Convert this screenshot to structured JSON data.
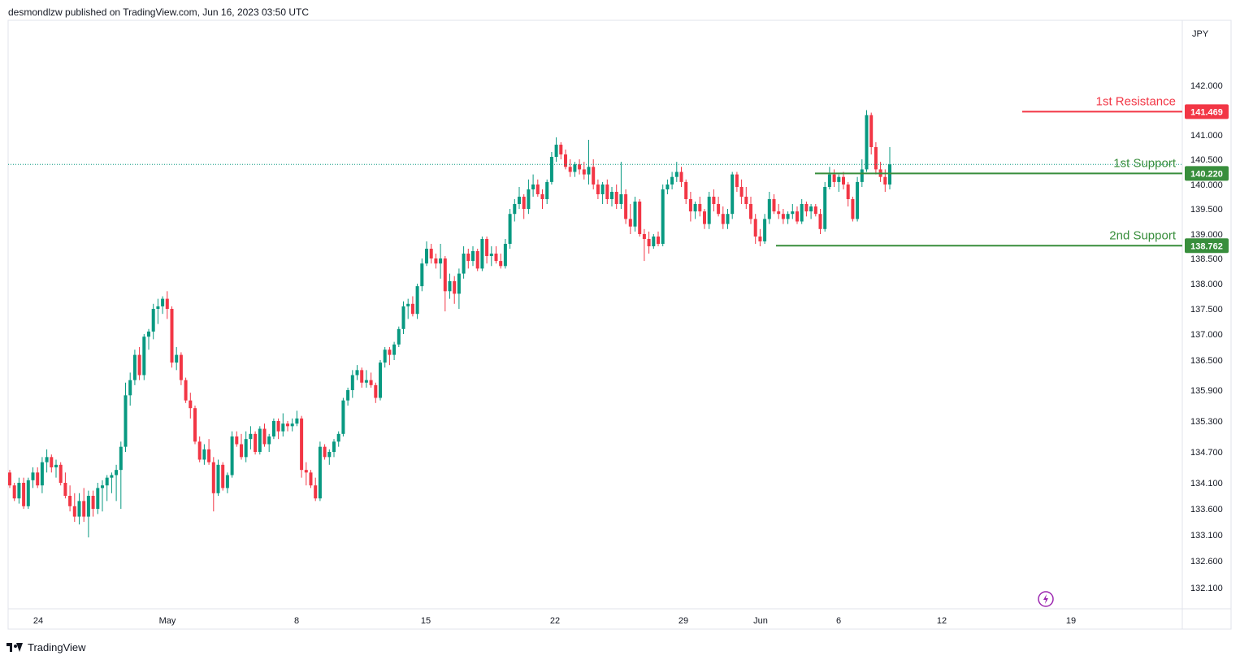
{
  "header": {
    "published_text": "desmondlzw published on TradingView.com, Jun 16, 2023 03:50 UTC"
  },
  "footer": {
    "brand": "TradingView"
  },
  "chart_data": {
    "type": "candlestick",
    "currency": "JPY",
    "y_ticks": [
      "142.000",
      "141.000",
      "140.500",
      "140.000",
      "139.500",
      "139.000",
      "138.500",
      "138.000",
      "137.500",
      "137.000",
      "136.500",
      "135.900",
      "135.300",
      "134.700",
      "134.100",
      "133.600",
      "133.100",
      "132.600",
      "132.100"
    ],
    "x_ticks": [
      "24",
      "May",
      "8",
      "15",
      "22",
      "29",
      "Jun",
      "6",
      "12",
      "19"
    ],
    "levels": [
      {
        "name": "1st Resistance",
        "value": 141.469,
        "label": "141.469",
        "color": "#f23645"
      },
      {
        "name": "1st Support",
        "value": 140.22,
        "label": "140.220",
        "color": "#388e3c"
      },
      {
        "name": "2nd Support",
        "value": 138.762,
        "label": "138.762",
        "color": "#388e3c"
      }
    ],
    "last_price": 140.4,
    "colors": {
      "up": "#089981",
      "down": "#f23645"
    },
    "candles": [
      [
        134.3,
        134.35,
        134.0,
        134.05
      ],
      [
        134.05,
        134.1,
        133.75,
        133.8
      ],
      [
        133.8,
        134.2,
        133.7,
        134.1
      ],
      [
        134.1,
        134.2,
        133.6,
        133.65
      ],
      [
        133.65,
        134.2,
        133.6,
        134.15
      ],
      [
        134.15,
        134.4,
        134.0,
        134.3
      ],
      [
        134.3,
        134.4,
        134.0,
        134.05
      ],
      [
        134.05,
        134.6,
        133.9,
        134.5
      ],
      [
        134.5,
        134.75,
        134.3,
        134.6
      ],
      [
        134.6,
        134.65,
        134.3,
        134.4
      ],
      [
        134.4,
        134.55,
        134.2,
        134.45
      ],
      [
        134.45,
        134.5,
        134.05,
        134.1
      ],
      [
        134.1,
        134.3,
        133.8,
        133.85
      ],
      [
        133.85,
        134.05,
        133.55,
        133.65
      ],
      [
        133.65,
        133.9,
        133.35,
        133.45
      ],
      [
        133.45,
        133.9,
        133.3,
        133.75
      ],
      [
        133.75,
        134.0,
        133.35,
        133.45
      ],
      [
        133.45,
        133.95,
        133.05,
        133.85
      ],
      [
        133.85,
        133.95,
        133.45,
        133.6
      ],
      [
        133.6,
        134.1,
        133.5,
        134.0
      ],
      [
        134.0,
        134.15,
        133.55,
        134.05
      ],
      [
        134.05,
        134.25,
        133.75,
        134.2
      ],
      [
        134.2,
        134.3,
        133.9,
        134.25
      ],
      [
        134.25,
        134.45,
        133.75,
        134.35
      ],
      [
        134.35,
        134.9,
        133.6,
        134.8
      ],
      [
        134.8,
        136.05,
        134.7,
        135.8
      ],
      [
        135.8,
        136.25,
        135.6,
        136.1
      ],
      [
        136.1,
        136.7,
        136.0,
        136.6
      ],
      [
        136.6,
        136.75,
        136.1,
        136.2
      ],
      [
        136.2,
        137.0,
        136.1,
        136.95
      ],
      [
        136.95,
        137.1,
        136.7,
        137.05
      ],
      [
        137.05,
        137.6,
        136.9,
        137.5
      ],
      [
        137.5,
        137.7,
        137.2,
        137.55
      ],
      [
        137.55,
        137.75,
        137.4,
        137.7
      ],
      [
        137.7,
        137.85,
        137.3,
        137.5
      ],
      [
        137.5,
        137.55,
        136.35,
        136.45
      ],
      [
        136.45,
        136.75,
        136.3,
        136.6
      ],
      [
        136.6,
        136.65,
        136.0,
        136.1
      ],
      [
        136.1,
        136.15,
        135.65,
        135.7
      ],
      [
        135.7,
        135.85,
        135.35,
        135.55
      ],
      [
        135.55,
        135.6,
        134.85,
        134.9
      ],
      [
        134.9,
        135.0,
        134.5,
        134.55
      ],
      [
        134.55,
        134.85,
        134.45,
        134.75
      ],
      [
        134.75,
        134.95,
        134.45,
        134.5
      ],
      [
        134.5,
        134.6,
        133.55,
        133.9
      ],
      [
        133.9,
        134.55,
        133.85,
        134.45
      ],
      [
        134.45,
        134.5,
        133.95,
        134.0
      ],
      [
        134.0,
        134.3,
        133.9,
        134.25
      ],
      [
        134.25,
        135.1,
        134.2,
        135.0
      ],
      [
        135.0,
        135.1,
        134.8,
        134.85
      ],
      [
        134.85,
        135.05,
        134.55,
        134.6
      ],
      [
        134.6,
        135.1,
        134.5,
        134.95
      ],
      [
        134.95,
        135.2,
        134.75,
        135.05
      ],
      [
        135.05,
        135.1,
        134.65,
        134.7
      ],
      [
        134.7,
        135.2,
        134.65,
        135.15
      ],
      [
        135.15,
        135.25,
        134.8,
        134.85
      ],
      [
        134.85,
        135.05,
        134.7,
        135.0
      ],
      [
        135.0,
        135.35,
        134.95,
        135.3
      ],
      [
        135.3,
        135.35,
        134.95,
        135.1
      ],
      [
        135.1,
        135.45,
        135.0,
        135.25
      ],
      [
        135.25,
        135.3,
        135.1,
        135.2
      ],
      [
        135.2,
        135.35,
        135.1,
        135.25
      ],
      [
        135.25,
        135.5,
        135.2,
        135.35
      ],
      [
        135.35,
        135.4,
        134.2,
        134.35
      ],
      [
        134.35,
        134.5,
        134.05,
        134.3
      ],
      [
        134.3,
        134.35,
        134.0,
        134.05
      ],
      [
        134.05,
        134.2,
        133.75,
        133.8
      ],
      [
        133.8,
        134.9,
        133.75,
        134.8
      ],
      [
        134.8,
        134.85,
        134.55,
        134.6
      ],
      [
        134.6,
        134.75,
        134.45,
        134.7
      ],
      [
        134.7,
        134.95,
        134.6,
        134.9
      ],
      [
        134.9,
        135.1,
        134.8,
        135.05
      ],
      [
        135.05,
        135.75,
        135.0,
        135.7
      ],
      [
        135.7,
        135.95,
        135.6,
        135.9
      ],
      [
        135.9,
        136.3,
        135.75,
        136.2
      ],
      [
        136.2,
        136.4,
        136.1,
        136.3
      ],
      [
        136.3,
        136.35,
        135.95,
        136.05
      ],
      [
        136.05,
        136.3,
        135.95,
        136.1
      ],
      [
        136.1,
        136.25,
        135.95,
        136.0
      ],
      [
        136.0,
        136.05,
        135.65,
        135.75
      ],
      [
        135.75,
        136.5,
        135.7,
        136.45
      ],
      [
        136.45,
        136.75,
        136.35,
        136.7
      ],
      [
        136.7,
        136.75,
        136.4,
        136.6
      ],
      [
        136.6,
        136.85,
        136.5,
        136.8
      ],
      [
        136.8,
        137.15,
        136.75,
        137.1
      ],
      [
        137.1,
        137.65,
        137.0,
        137.55
      ],
      [
        137.55,
        137.7,
        137.3,
        137.6
      ],
      [
        137.6,
        137.75,
        137.35,
        137.4
      ],
      [
        137.4,
        138.0,
        137.3,
        137.95
      ],
      [
        137.95,
        138.5,
        137.85,
        138.4
      ],
      [
        138.4,
        138.85,
        138.35,
        138.7
      ],
      [
        138.7,
        138.8,
        138.4,
        138.5
      ],
      [
        138.5,
        138.6,
        138.3,
        138.4
      ],
      [
        138.4,
        138.8,
        138.1,
        138.5
      ],
      [
        138.5,
        138.55,
        137.45,
        137.85
      ],
      [
        137.85,
        138.2,
        137.7,
        138.05
      ],
      [
        138.05,
        138.15,
        137.6,
        137.8
      ],
      [
        137.8,
        138.3,
        137.5,
        138.2
      ],
      [
        138.2,
        138.75,
        138.1,
        138.6
      ],
      [
        138.6,
        138.7,
        138.3,
        138.45
      ],
      [
        138.45,
        138.75,
        138.35,
        138.65
      ],
      [
        138.65,
        138.7,
        138.25,
        138.3
      ],
      [
        138.3,
        138.95,
        138.25,
        138.9
      ],
      [
        138.9,
        138.95,
        138.4,
        138.55
      ],
      [
        138.55,
        138.75,
        138.35,
        138.6
      ],
      [
        138.6,
        138.75,
        138.4,
        138.45
      ],
      [
        138.45,
        138.6,
        138.3,
        138.35
      ],
      [
        138.35,
        138.9,
        138.3,
        138.8
      ],
      [
        138.8,
        139.5,
        138.7,
        139.4
      ],
      [
        139.4,
        139.7,
        139.25,
        139.6
      ],
      [
        139.6,
        139.95,
        139.5,
        139.75
      ],
      [
        139.75,
        139.8,
        139.3,
        139.5
      ],
      [
        139.5,
        140.1,
        139.4,
        139.9
      ],
      [
        139.9,
        140.2,
        139.75,
        140.0
      ],
      [
        140.0,
        140.1,
        139.75,
        139.8
      ],
      [
        139.8,
        139.9,
        139.5,
        139.7
      ],
      [
        139.7,
        140.1,
        139.6,
        140.05
      ],
      [
        140.05,
        140.65,
        140.0,
        140.55
      ],
      [
        140.55,
        140.95,
        140.45,
        140.8
      ],
      [
        140.8,
        140.85,
        140.5,
        140.6
      ],
      [
        140.6,
        140.7,
        140.3,
        140.35
      ],
      [
        140.35,
        140.5,
        140.15,
        140.25
      ],
      [
        140.25,
        140.45,
        140.15,
        140.4
      ],
      [
        140.4,
        140.5,
        140.2,
        140.3
      ],
      [
        140.3,
        140.45,
        140.1,
        140.2
      ],
      [
        140.2,
        140.9,
        140.0,
        140.35
      ],
      [
        140.35,
        140.5,
        139.9,
        140.0
      ],
      [
        140.0,
        140.1,
        139.7,
        139.8
      ],
      [
        139.8,
        140.05,
        139.6,
        140.0
      ],
      [
        140.0,
        140.1,
        139.6,
        139.7
      ],
      [
        139.7,
        139.95,
        139.55,
        139.85
      ],
      [
        139.85,
        140.0,
        139.5,
        139.6
      ],
      [
        139.6,
        140.45,
        139.5,
        139.8
      ],
      [
        139.8,
        139.9,
        139.2,
        139.3
      ],
      [
        139.3,
        139.6,
        139.0,
        139.15
      ],
      [
        139.15,
        139.75,
        139.05,
        139.65
      ],
      [
        139.65,
        139.7,
        138.95,
        139.0
      ],
      [
        139.0,
        139.1,
        138.45,
        138.9
      ],
      [
        138.9,
        139.05,
        138.6,
        138.75
      ],
      [
        138.75,
        139.0,
        138.7,
        138.95
      ],
      [
        138.95,
        139.05,
        138.75,
        138.8
      ],
      [
        138.8,
        140.0,
        138.75,
        139.9
      ],
      [
        139.9,
        140.1,
        139.8,
        140.0
      ],
      [
        140.0,
        140.25,
        139.9,
        140.15
      ],
      [
        140.15,
        140.45,
        140.05,
        140.25
      ],
      [
        140.25,
        140.35,
        139.95,
        140.05
      ],
      [
        140.05,
        140.1,
        139.6,
        139.7
      ],
      [
        139.7,
        139.85,
        139.25,
        139.45
      ],
      [
        139.45,
        139.65,
        139.3,
        139.6
      ],
      [
        139.6,
        139.75,
        139.35,
        139.45
      ],
      [
        139.45,
        139.5,
        139.1,
        139.2
      ],
      [
        139.2,
        139.85,
        139.1,
        139.75
      ],
      [
        139.75,
        139.9,
        139.45,
        139.6
      ],
      [
        139.6,
        139.75,
        139.35,
        139.4
      ],
      [
        139.4,
        139.55,
        139.1,
        139.2
      ],
      [
        139.2,
        139.5,
        139.1,
        139.4
      ],
      [
        139.4,
        140.25,
        139.3,
        140.2
      ],
      [
        140.2,
        140.25,
        139.85,
        139.95
      ],
      [
        139.95,
        140.1,
        139.6,
        139.75
      ],
      [
        139.75,
        139.95,
        139.5,
        139.6
      ],
      [
        139.6,
        139.75,
        139.2,
        139.3
      ],
      [
        139.3,
        139.4,
        138.8,
        138.95
      ],
      [
        138.95,
        139.1,
        138.75,
        138.85
      ],
      [
        138.85,
        139.4,
        138.8,
        139.3
      ],
      [
        139.3,
        139.85,
        139.2,
        139.7
      ],
      [
        139.7,
        139.8,
        139.4,
        139.45
      ],
      [
        139.45,
        139.6,
        139.3,
        139.4
      ],
      [
        139.4,
        139.5,
        139.2,
        139.3
      ],
      [
        139.3,
        139.45,
        139.2,
        139.4
      ],
      [
        139.4,
        139.6,
        139.3,
        139.45
      ],
      [
        139.45,
        139.55,
        139.2,
        139.25
      ],
      [
        139.25,
        139.7,
        139.2,
        139.6
      ],
      [
        139.6,
        139.65,
        139.35,
        139.45
      ],
      [
        139.45,
        139.6,
        139.3,
        139.55
      ],
      [
        139.55,
        139.6,
        139.35,
        139.4
      ],
      [
        139.4,
        139.5,
        139.0,
        139.1
      ],
      [
        139.1,
        140.05,
        139.05,
        139.95
      ],
      [
        139.95,
        140.35,
        139.9,
        140.2
      ],
      [
        140.2,
        140.3,
        139.95,
        140.05
      ],
      [
        140.05,
        140.2,
        139.85,
        140.15
      ],
      [
        140.15,
        140.25,
        139.9,
        140.0
      ],
      [
        140.0,
        140.05,
        139.55,
        139.7
      ],
      [
        139.7,
        139.75,
        139.25,
        139.3
      ],
      [
        139.3,
        140.15,
        139.25,
        140.05
      ],
      [
        140.05,
        140.5,
        139.95,
        140.3
      ],
      [
        140.3,
        141.5,
        140.25,
        141.4
      ],
      [
        141.4,
        141.45,
        140.6,
        140.75
      ],
      [
        140.75,
        140.85,
        140.2,
        140.3
      ],
      [
        140.3,
        140.45,
        140.05,
        140.15
      ],
      [
        140.15,
        140.3,
        139.85,
        140.0
      ],
      [
        140.0,
        140.75,
        139.9,
        140.4
      ]
    ]
  }
}
